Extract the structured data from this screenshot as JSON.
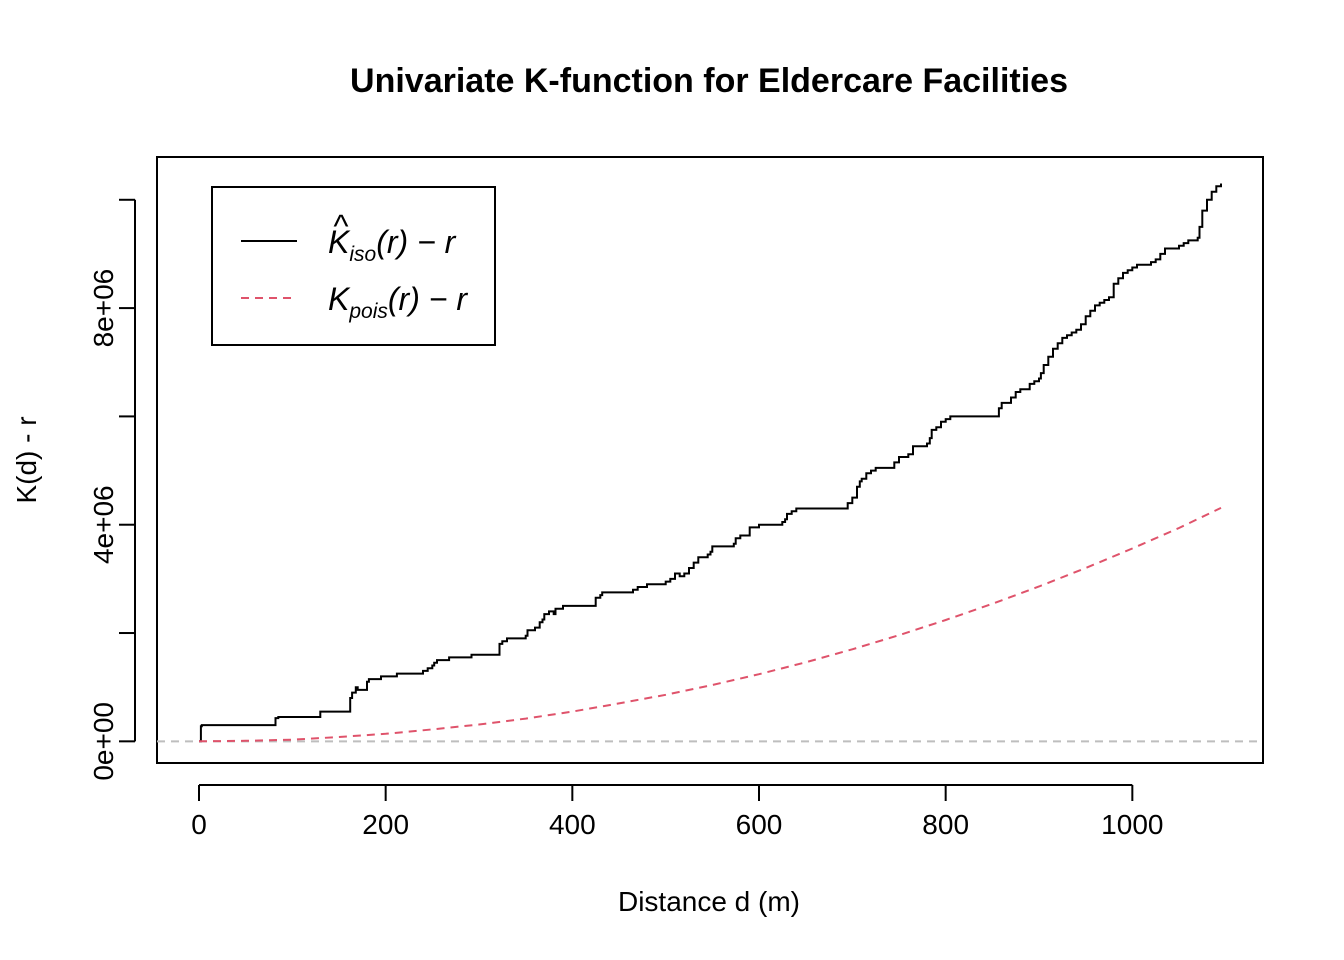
{
  "chart_data": {
    "type": "line",
    "title": "Univariate K-function for Eldercare Facilities",
    "xlabel": "Distance d (m)",
    "ylabel": "K(d) - r",
    "xlim": [
      -45,
      1140
    ],
    "ylim": [
      -400000,
      10790000
    ],
    "x_ticks": [
      0,
      200,
      400,
      600,
      800,
      1000
    ],
    "x_tick_labels": [
      "0",
      "200",
      "400",
      "600",
      "800",
      "1000"
    ],
    "y_ticks": [
      0,
      2000000,
      4000000,
      6000000,
      8000000,
      10000000
    ],
    "y_tick_labels": [
      "0e+00",
      "",
      "4e+06",
      "",
      "8e+06",
      ""
    ],
    "grid": false,
    "legend_position": "top-left",
    "series": [
      {
        "name": "K̂iso(r) − r",
        "name_main": "K",
        "name_sub": "iso",
        "name_rest": "(r) − r",
        "style": "solid",
        "color": "#000000",
        "x": [
          0,
          2,
          3,
          80,
          82,
          85,
          125,
          130,
          158,
          162,
          164,
          168,
          170,
          177,
          180,
          182,
          190,
          195,
          210,
          212,
          240,
          245,
          250,
          252,
          255,
          262,
          268,
          290,
          292,
          300,
          320,
          322,
          325,
          330,
          350,
          352,
          360,
          365,
          368,
          370,
          375,
          380,
          382,
          385,
          390,
          420,
          425,
          430,
          432,
          450,
          455,
          465,
          470,
          475,
          480,
          485,
          500,
          505,
          510,
          515,
          520,
          525,
          530,
          535,
          545,
          548,
          550,
          570,
          573,
          575,
          580,
          590,
          600,
          620,
          625,
          628,
          630,
          635,
          640,
          690,
          695,
          700,
          705,
          708,
          710,
          715,
          720,
          725,
          735,
          745,
          750,
          760,
          765,
          780,
          783,
          785,
          790,
          795,
          800,
          805,
          810,
          855,
          857,
          860,
          870,
          875,
          880,
          890,
          895,
          900,
          902,
          905,
          910,
          915,
          920,
          925,
          930,
          935,
          940,
          945,
          950,
          955,
          960,
          965,
          970,
          975,
          980,
          985,
          990,
          995,
          1000,
          1005,
          1010,
          1020,
          1025,
          1030,
          1035,
          1050,
          1055,
          1060,
          1065,
          1070,
          1072,
          1075,
          1080,
          1085,
          1090,
          1095
        ],
        "values": [
          0,
          280000,
          300000,
          300000,
          430000,
          450000,
          450000,
          550000,
          550000,
          800000,
          900000,
          1000000,
          950000,
          950000,
          1100000,
          1150000,
          1150000,
          1200000,
          1200000,
          1250000,
          1300000,
          1350000,
          1400000,
          1450000,
          1500000,
          1500000,
          1550000,
          1550000,
          1600000,
          1600000,
          1600000,
          1800000,
          1850000,
          1900000,
          1950000,
          2050000,
          2100000,
          2200000,
          2250000,
          2350000,
          2400000,
          2350000,
          2450000,
          2450000,
          2500000,
          2500000,
          2650000,
          2700000,
          2750000,
          2750000,
          2750000,
          2800000,
          2850000,
          2850000,
          2900000,
          2900000,
          2950000,
          3000000,
          3100000,
          3050000,
          3100000,
          3200000,
          3300000,
          3400000,
          3450000,
          3500000,
          3600000,
          3600000,
          3650000,
          3750000,
          3800000,
          3950000,
          4000000,
          4000000,
          4050000,
          4100000,
          4200000,
          4250000,
          4300000,
          4300000,
          4400000,
          4500000,
          4700000,
          4800000,
          4850000,
          4950000,
          5000000,
          5050000,
          5050000,
          5150000,
          5250000,
          5300000,
          5450000,
          5500000,
          5600000,
          5750000,
          5800000,
          5900000,
          5950000,
          6000000,
          6000000,
          6000000,
          6150000,
          6250000,
          6350000,
          6450000,
          6500000,
          6600000,
          6650000,
          6700000,
          6800000,
          6950000,
          7100000,
          7250000,
          7350000,
          7450000,
          7500000,
          7550000,
          7600000,
          7700000,
          7850000,
          7950000,
          8050000,
          8100000,
          8150000,
          8200000,
          8450000,
          8550000,
          8650000,
          8700000,
          8750000,
          8800000,
          8800000,
          8850000,
          8900000,
          9000000,
          9100000,
          9150000,
          9200000,
          9250000,
          9250000,
          9300000,
          9500000,
          9800000,
          10000000,
          10150000,
          10250000,
          10300000
        ]
      },
      {
        "name": "Kpois(r) − r",
        "name_main": "K",
        "name_sub": "pois",
        "name_rest": "(r) − r",
        "style": "dashed",
        "color": "#df536b",
        "x": [
          0,
          50,
          100,
          150,
          200,
          250,
          300,
          350,
          400,
          450,
          500,
          550,
          600,
          650,
          700,
          750,
          800,
          850,
          900,
          950,
          1000,
          1050,
          1095
        ],
        "values": [
          0,
          10000,
          30000,
          80000,
          140000,
          220000,
          310000,
          420000,
          550000,
          700000,
          860000,
          1040000,
          1240000,
          1460000,
          1700000,
          1960000,
          2240000,
          2540000,
          2860000,
          3200000,
          3560000,
          3940000,
          4310000
        ]
      }
    ],
    "reference_line": {
      "y": 0,
      "style": "dashed",
      "color": "#bebebe"
    }
  }
}
